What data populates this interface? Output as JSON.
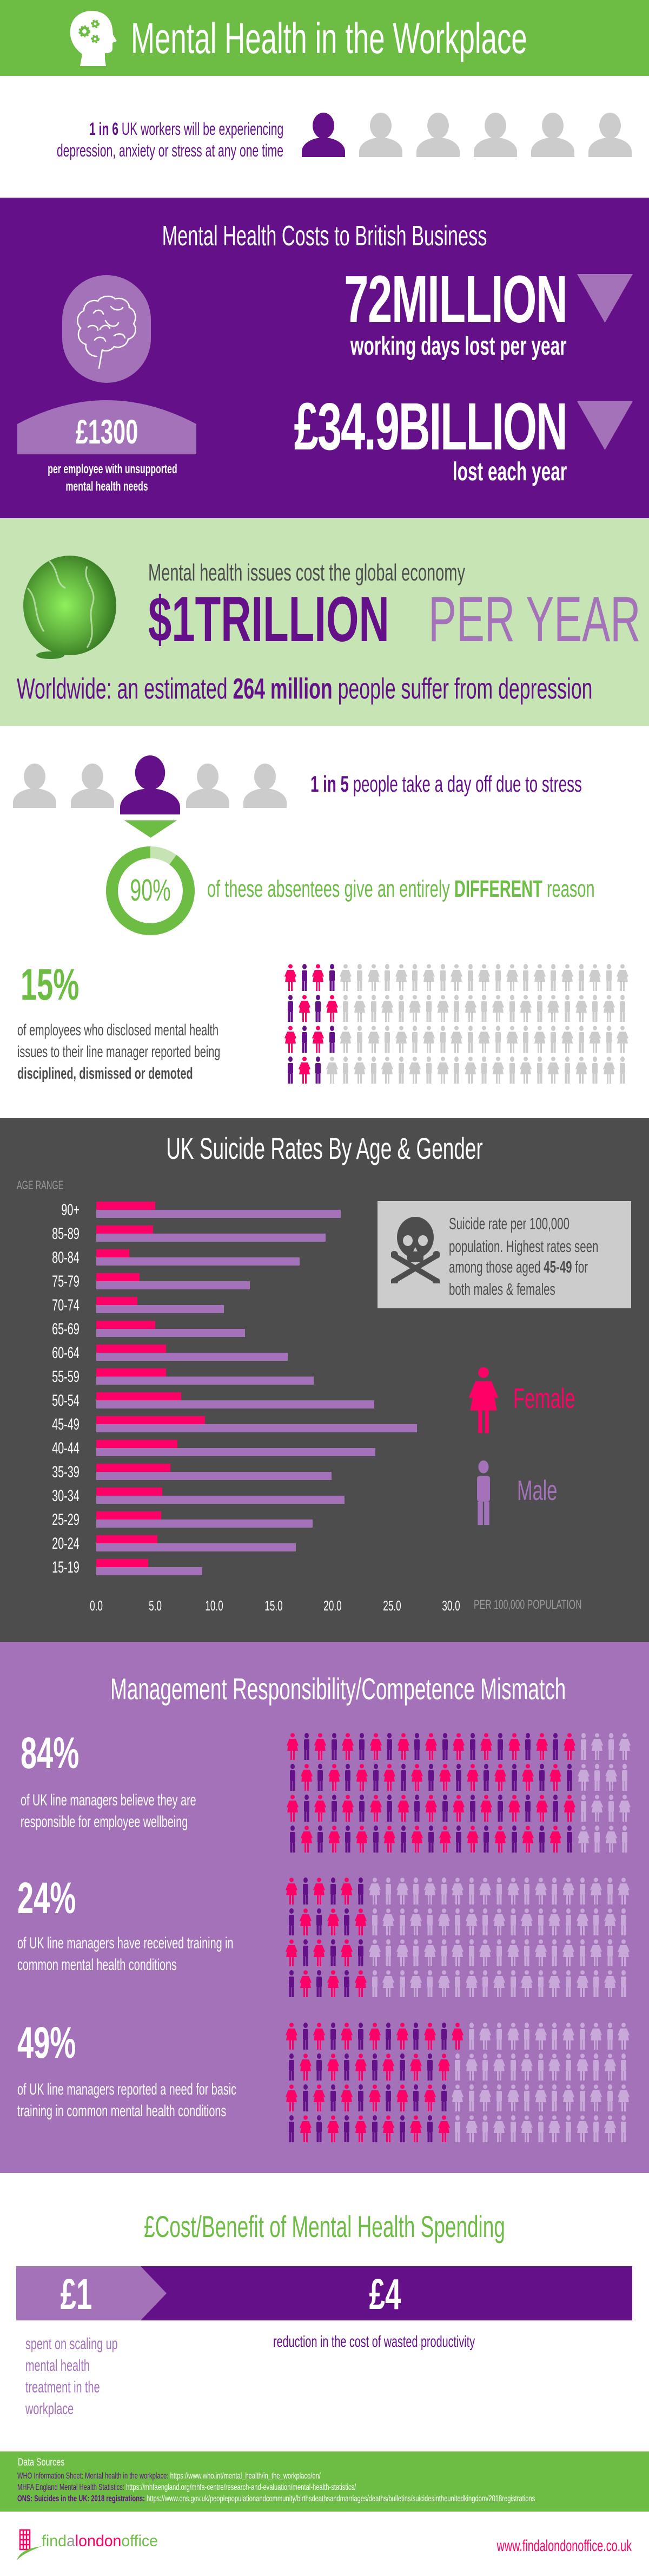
{
  "colors": {
    "green": "#6dbd45",
    "light_green_bg": "#c6e4b4",
    "purple": "#641189",
    "light_purple": "#a372b8",
    "pink": "#ff0066",
    "grey_figure": "#cccccc",
    "dark_bg": "#4d4d4d",
    "pale_purple_figure": "#c9a9da"
  },
  "header": {
    "title": "Mental Health in the Workplace",
    "icon": "head-with-gears-icon"
  },
  "stat_1in6": {
    "highlight": "1 in 6",
    "line1_rest": " UK workers will be experiencing",
    "line2": "depression, anxiety or stress at any one time",
    "figures_total": 6,
    "figures_highlighted_index": 0
  },
  "costs": {
    "title": "Mental Health Costs to British Business",
    "days_value": "72MILLION",
    "days_label": "working days lost per year",
    "cost_value": "£34.9BILLION",
    "cost_label": "lost each year",
    "per_employee_value": "£1300",
    "per_employee_line1": "per employee with unsupported",
    "per_employee_line2": "mental health needs",
    "icon": "brain-icon",
    "trend_icon": "down-triangle-icon"
  },
  "global": {
    "intro": "Mental health issues cost the global economy",
    "amount": "$1TRILLION",
    "period": "PER YEAR",
    "worldwide_prefix": "Worldwide: an estimated ",
    "worldwide_bold": "264 million",
    "worldwide_suffix": " people suffer from depression",
    "icon": "globe-icon"
  },
  "stress": {
    "highlight": "1 in 5",
    "text": " people take a day off due to stress",
    "figures_total": 5,
    "figures_highlighted_index": 2,
    "ring_label": "90%",
    "ring_value": 90,
    "absentees_prefix": "of these absentees give an entirely ",
    "absentees_bold": "DIFFERENT",
    "absentees_suffix": " reason"
  },
  "disclosure": {
    "percent_label": "15%",
    "percent_value": 15,
    "line1": "of employees who disclosed mental health",
    "line2": "issues to their line manager reported being",
    "line3_bold": "disciplined, dismissed or demoted"
  },
  "chart_data": {
    "type": "bar",
    "orientation": "horizontal",
    "title": "UK Suicide Rates By Age & Gender",
    "ylabel": "AGE RANGE",
    "xlabel": "PER 100,000 POPULATION",
    "xlim": [
      0,
      30
    ],
    "x_ticks": [
      "0.0",
      "5.0",
      "10.0",
      "15.0",
      "20.0",
      "25.0",
      "30.0"
    ],
    "grid": false,
    "legend_position": "right",
    "categories": [
      "90+",
      "85-89",
      "80-84",
      "75-79",
      "70-74",
      "65-69",
      "60-64",
      "55-59",
      "50-54",
      "45-49",
      "40-44",
      "35-39",
      "30-34",
      "25-29",
      "20-24",
      "15-19"
    ],
    "series": [
      {
        "name": "Female",
        "color": "#ff0066",
        "values": [
          5.0,
          4.8,
          2.8,
          3.7,
          3.5,
          5.0,
          5.9,
          5.9,
          7.2,
          9.2,
          6.9,
          6.3,
          5.6,
          5.5,
          5.2,
          4.4
        ]
      },
      {
        "name": "Male",
        "color": "#a372b8",
        "values": [
          20.7,
          19.4,
          17.2,
          13.0,
          10.8,
          12.6,
          16.2,
          18.4,
          23.5,
          27.1,
          23.6,
          19.9,
          21.0,
          18.3,
          16.9,
          9.0
        ]
      }
    ]
  },
  "chart_note": {
    "line1": "Suicide rate per 100,000",
    "line2": "population. Highest rates seen",
    "line3_prefix": "among those aged ",
    "line3_bold": "45-49",
    "line3_suffix": " for",
    "line4": "both males & females",
    "icon": "skull-crossbones-icon"
  },
  "management": {
    "title": "Management Responsibility/Competence Mismatch",
    "items": [
      {
        "percent_label": "84%",
        "percent_value": 84,
        "line1": "of UK line managers believe they are",
        "line2": "responsible for employee wellbeing"
      },
      {
        "percent_label": "24%",
        "percent_value": 24,
        "line1": "of UK line managers have received training in",
        "line2": "common mental health conditions"
      },
      {
        "percent_label": "49%",
        "percent_value": 49,
        "line1": "of UK line managers reported a need for basic",
        "line2": "training in common mental health conditions"
      }
    ]
  },
  "cost_benefit": {
    "title": "£Cost/Benefit of Mental Health Spending",
    "cost_value": "£1",
    "cost_lines": [
      "spent on scaling up",
      "mental health",
      "treatment in the",
      "workplace"
    ],
    "benefit_value": "£4",
    "benefit_text": "reduction in the cost of wasted productivity"
  },
  "sources": {
    "heading": "Data Sources",
    "items": [
      {
        "name": "WHO Information Sheet: Mental health in the workplace:",
        "url": " https://www.who.int/mental_health/in_the_workplace/en/"
      },
      {
        "name": "MHFA England Mental Health Statistics:",
        "url": " https://mhfaengland.org/mhfa-centre/research-and-evaluation/mental-health-statistics/"
      },
      {
        "name": "ONS: Suicides in the UK: 2018 registrations:",
        "url": " https://www.ons.gov.uk/peoplepopulationandcommunity/birthsdeathsandmarriages/deaths/bulletins/suicidesintheunitedkingdom/2018registrations"
      }
    ]
  },
  "footer": {
    "logo_find": "find",
    "logo_a": "a",
    "logo_london": "london",
    "logo_office": "office",
    "url": "www.findalondonoffice.co.uk"
  }
}
